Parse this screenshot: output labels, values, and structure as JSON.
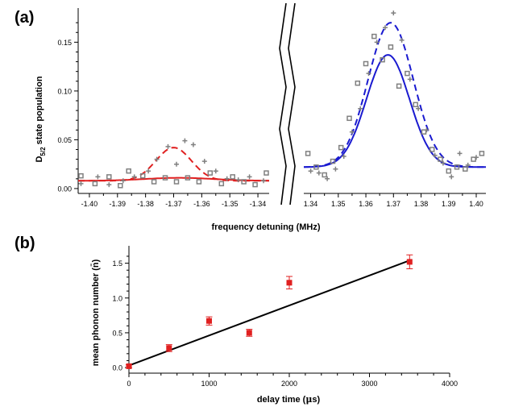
{
  "colors": {
    "red": "#e02020",
    "blue": "#1a1ad0",
    "grey": "#808080",
    "black": "#000000"
  },
  "chart_data": [
    {
      "panel_label": "(a)",
      "type": "scatter",
      "ylabel_main": "D",
      "ylabel_sub": "5/2",
      "ylabel_rest": " state population",
      "xlabel": "frequency detuning (MHz)",
      "ylim": [
        -0.005,
        0.185
      ],
      "y_ticks": [
        0.0,
        0.05,
        0.1,
        0.15
      ],
      "y_tick_labels": [
        "0.00",
        "0.05",
        "0.10",
        "0.15"
      ],
      "axis_break": true,
      "subplots": [
        {
          "name": "left",
          "xlim": [
            -1.404,
            -1.336
          ],
          "x_ticks": [
            -1.4,
            -1.39,
            -1.38,
            -1.37,
            -1.36,
            -1.35,
            -1.34
          ],
          "x_tick_labels": [
            "-1.40",
            "-1.39",
            "-1.38",
            "-1.37",
            "-1.36",
            "-1.35",
            "-1.34"
          ],
          "plus_points": {
            "x": [
              -1.403,
              -1.397,
              -1.393,
              -1.388,
              -1.384,
              -1.379,
              -1.376,
              -1.372,
              -1.369,
              -1.366,
              -1.363,
              -1.359,
              -1.355,
              -1.351,
              -1.347,
              -1.343,
              -1.338
            ],
            "y": [
              0.005,
              0.012,
              0.004,
              0.008,
              0.012,
              0.018,
              0.03,
              0.043,
              0.025,
              0.049,
              0.045,
              0.028,
              0.018,
              0.01,
              0.009,
              0.012,
              0.008
            ]
          },
          "square_points": {
            "x": [
              -1.403,
              -1.398,
              -1.393,
              -1.389,
              -1.386,
              -1.381,
              -1.377,
              -1.373,
              -1.369,
              -1.365,
              -1.361,
              -1.357,
              -1.353,
              -1.349,
              -1.345,
              -1.341,
              -1.337
            ],
            "y": [
              0.013,
              0.005,
              0.012,
              0.003,
              0.018,
              0.013,
              0.007,
              0.011,
              0.007,
              0.011,
              0.007,
              0.016,
              0.005,
              0.012,
              0.007,
              0.004,
              0.016
            ]
          },
          "fits": [
            {
              "style": "dashed",
              "color": "#e02020",
              "baseline": 0.008,
              "amplitude": 0.034,
              "center": -1.37,
              "sigma": 0.0063
            },
            {
              "style": "solid",
              "color": "#e02020",
              "baseline": 0.008,
              "amplitude": 0.003,
              "center": -1.368,
              "sigma": 0.012
            }
          ]
        },
        {
          "name": "right",
          "xlim": [
            1.3375,
            1.4035
          ],
          "x_ticks": [
            1.34,
            1.35,
            1.36,
            1.37,
            1.38,
            1.39,
            1.4
          ],
          "x_tick_labels": [
            "1.34",
            "1.35",
            "1.36",
            "1.37",
            "1.38",
            "1.39",
            "1.40"
          ],
          "plus_points": {
            "x": [
              1.34,
              1.343,
              1.346,
              1.349,
              1.352,
              1.355,
              1.358,
              1.361,
              1.364,
              1.367,
              1.37,
              1.373,
              1.376,
              1.379,
              1.382,
              1.385,
              1.388,
              1.391,
              1.394,
              1.397,
              1.4
            ],
            "y": [
              0.018,
              0.016,
              0.01,
              0.02,
              0.033,
              0.058,
              0.082,
              0.118,
              0.15,
              0.165,
              0.18,
              0.152,
              0.112,
              0.082,
              0.06,
              0.034,
              0.026,
              0.012,
              0.036,
              0.024,
              0.032
            ]
          },
          "square_points": {
            "x": [
              1.339,
              1.342,
              1.345,
              1.348,
              1.351,
              1.354,
              1.357,
              1.36,
              1.363,
              1.366,
              1.369,
              1.372,
              1.375,
              1.378,
              1.381,
              1.384,
              1.387,
              1.39,
              1.393,
              1.396,
              1.399,
              1.402
            ],
            "y": [
              0.036,
              0.022,
              0.014,
              0.028,
              0.042,
              0.072,
              0.108,
              0.128,
              0.156,
              0.132,
              0.145,
              0.105,
              0.118,
              0.086,
              0.058,
              0.04,
              0.03,
              0.018,
              0.022,
              0.02,
              0.03,
              0.036
            ]
          },
          "fits": [
            {
              "style": "dashed",
              "color": "#1a1ad0",
              "baseline": 0.022,
              "amplitude": 0.148,
              "center": 1.369,
              "sigma": 0.0082
            },
            {
              "style": "solid",
              "color": "#1a1ad0",
              "baseline": 0.022,
              "amplitude": 0.115,
              "center": 1.368,
              "sigma": 0.0078
            }
          ]
        }
      ]
    },
    {
      "panel_label": "(b)",
      "type": "scatter",
      "xlabel": "delay time (",
      "xlabel_mu": "μ",
      "xlabel_rest": "s)",
      "ylabel": "mean phonon number (n̄)",
      "xlim": [
        0,
        4000
      ],
      "ylim": [
        -0.08,
        1.75
      ],
      "x_ticks": [
        0,
        1000,
        2000,
        3000,
        4000
      ],
      "x_tick_labels": [
        "0",
        "1000",
        "2000",
        "3000",
        "4000"
      ],
      "y_ticks": [
        0.0,
        0.5,
        1.0,
        1.5
      ],
      "y_tick_labels": [
        "0.0",
        "0.5",
        "1.0",
        "1.5"
      ],
      "points": {
        "x": [
          0,
          500,
          1000,
          1500,
          2000,
          3500
        ],
        "y": [
          0.02,
          0.28,
          0.67,
          0.5,
          1.22,
          1.52
        ],
        "yerr": [
          0.02,
          0.05,
          0.06,
          0.05,
          0.09,
          0.1
        ]
      },
      "fit_line": {
        "x": [
          0,
          3500
        ],
        "y": [
          0.03,
          1.54
        ]
      }
    }
  ]
}
